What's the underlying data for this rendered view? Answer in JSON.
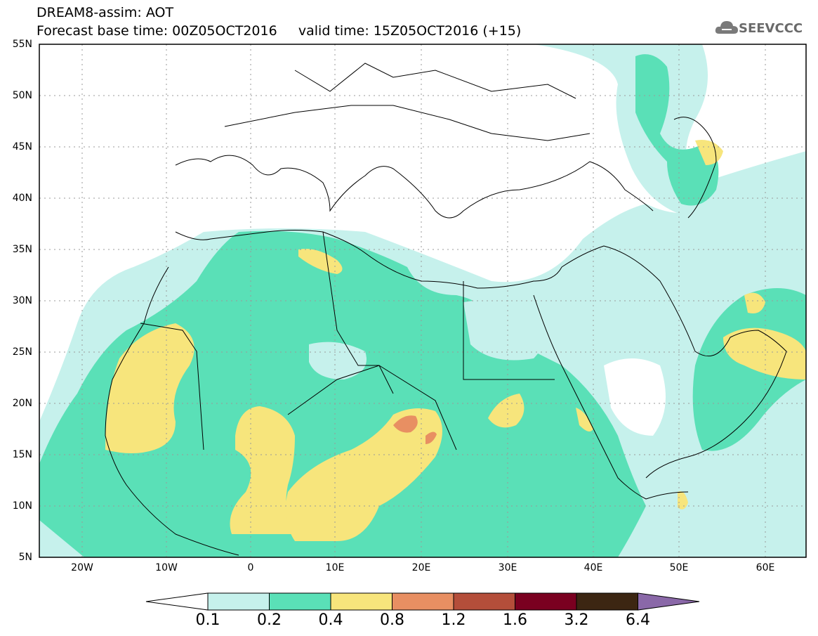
{
  "header": {
    "title_line1": "DREAM8-assim: AOT",
    "title_line2": "Forecast base time: 00Z05OCT2016     valid time: 15Z05OCT2016 (+15)"
  },
  "logo": {
    "text": "SEEVCCC",
    "icon": "cloud-icon"
  },
  "map": {
    "lat_labels": [
      "55N",
      "50N",
      "45N",
      "40N",
      "35N",
      "30N",
      "25N",
      "20N",
      "15N",
      "10N",
      "5N"
    ],
    "lon_labels": [
      "20W",
      "10W",
      "0",
      "10E",
      "20E",
      "30E",
      "40E",
      "50E",
      "60E"
    ]
  },
  "colorbar": {
    "labels": [
      "0.1",
      "0.2",
      "0.4",
      "0.8",
      "1.2",
      "1.6",
      "3.2",
      "6.4"
    ],
    "colors": [
      "#c6f1ec",
      "#5ae0b7",
      "#f7e57c",
      "#e88f62",
      "#b44e3a",
      "#7a0020",
      "#3c2612",
      "#8a68a8"
    ]
  }
}
